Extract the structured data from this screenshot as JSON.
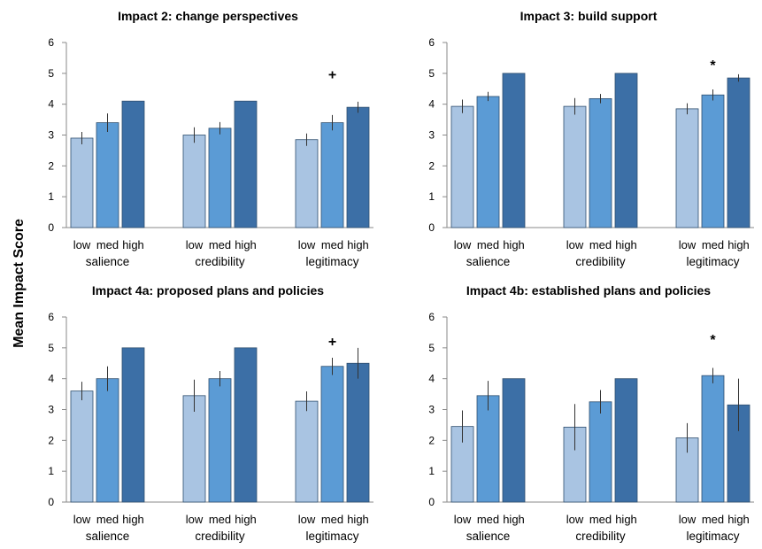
{
  "ylabel": "Mean Impact Score",
  "colors": {
    "low": "#a9c4e2",
    "med": "#5b9bd5",
    "high": "#3c6fa6",
    "axis": "#8a8a8a",
    "bar_stroke": "#2f4f6f",
    "error": "#333333"
  },
  "chart_data": [
    {
      "type": "bar",
      "title": "Impact 2: change perspectives",
      "ylim": [
        0,
        6
      ],
      "yticks": [
        0,
        1,
        2,
        3,
        4,
        5,
        6
      ],
      "levels": [
        "low",
        "med",
        "high"
      ],
      "groups": [
        "salience",
        "credibility",
        "legitimacy"
      ],
      "values": [
        [
          2.9,
          3.4,
          4.1
        ],
        [
          3.0,
          3.22,
          4.1
        ],
        [
          2.85,
          3.4,
          3.9
        ]
      ],
      "errors": [
        [
          0.2,
          0.3,
          0.0
        ],
        [
          0.25,
          0.2,
          0.0
        ],
        [
          0.2,
          0.25,
          0.18
        ]
      ],
      "annotation": {
        "text": "+",
        "group": 2,
        "value": 4.95
      }
    },
    {
      "type": "bar",
      "title": "Impact 3: build support",
      "ylim": [
        0,
        6
      ],
      "yticks": [
        0,
        1,
        2,
        3,
        4,
        5,
        6
      ],
      "levels": [
        "low",
        "med",
        "high"
      ],
      "groups": [
        "salience",
        "credibility",
        "legitimacy"
      ],
      "values": [
        [
          3.93,
          4.25,
          5.0
        ],
        [
          3.93,
          4.18,
          5.0
        ],
        [
          3.85,
          4.3,
          4.85
        ]
      ],
      "errors": [
        [
          0.22,
          0.15,
          0.0
        ],
        [
          0.27,
          0.15,
          0.0
        ],
        [
          0.18,
          0.18,
          0.12
        ]
      ],
      "annotation": {
        "text": "*",
        "group": 2,
        "value": 5.25
      }
    },
    {
      "type": "bar",
      "title": "Impact 4a: proposed plans and policies",
      "ylim": [
        0,
        6
      ],
      "yticks": [
        0,
        1,
        2,
        3,
        4,
        5,
        6
      ],
      "levels": [
        "low",
        "med",
        "high"
      ],
      "groups": [
        "salience",
        "credibility",
        "legitimacy"
      ],
      "values": [
        [
          3.6,
          4.0,
          5.0
        ],
        [
          3.45,
          4.0,
          5.0
        ],
        [
          3.27,
          4.4,
          4.5
        ]
      ],
      "errors": [
        [
          0.3,
          0.4,
          0.0
        ],
        [
          0.52,
          0.25,
          0.0
        ],
        [
          0.32,
          0.28,
          0.5
        ]
      ],
      "annotation": {
        "text": "+",
        "group": 2,
        "value": 5.2
      }
    },
    {
      "type": "bar",
      "title": "Impact 4b: established plans and policies",
      "ylim": [
        0,
        6
      ],
      "yticks": [
        0,
        1,
        2,
        3,
        4,
        5,
        6
      ],
      "levels": [
        "low",
        "med",
        "high"
      ],
      "groups": [
        "salience",
        "credibility",
        "legitimacy"
      ],
      "values": [
        [
          2.45,
          3.45,
          4.0
        ],
        [
          2.43,
          3.25,
          4.0
        ],
        [
          2.08,
          4.1,
          3.15
        ]
      ],
      "errors": [
        [
          0.52,
          0.48,
          0.0
        ],
        [
          0.75,
          0.38,
          0.0
        ],
        [
          0.48,
          0.25,
          0.85
        ]
      ],
      "annotation": {
        "text": "*",
        "group": 2,
        "value": 5.25
      }
    }
  ]
}
